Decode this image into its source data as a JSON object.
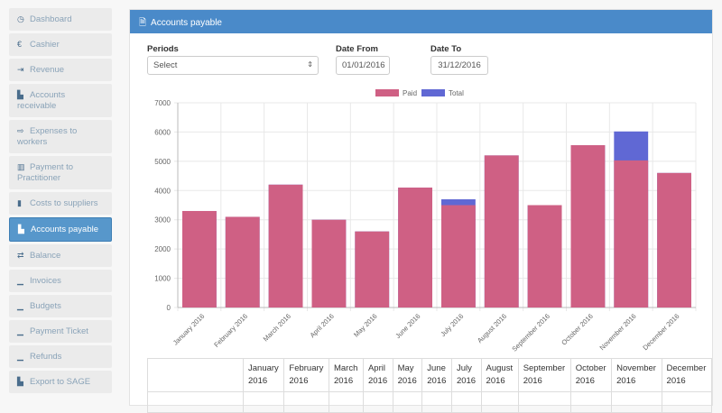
{
  "sidebar": {
    "items": [
      {
        "label": "Dashboard",
        "icon": "clock-icon",
        "glyph": "◷"
      },
      {
        "label": "Cashier",
        "icon": "euro-icon",
        "glyph": "€"
      },
      {
        "label": "Revenue",
        "icon": "sign-in-icon",
        "glyph": "⇥"
      },
      {
        "label": "Accounts receivable",
        "icon": "cash-register-icon",
        "glyph": "▙"
      },
      {
        "label": "Expenses to workers",
        "icon": "sign-out-icon",
        "glyph": "⇨"
      },
      {
        "label": "Payment to Practitioner",
        "icon": "columns-icon",
        "glyph": "▥"
      },
      {
        "label": "Costs to suppliers",
        "icon": "barcode-icon",
        "glyph": "▮"
      },
      {
        "label": "Accounts payable",
        "icon": "cash-register-icon",
        "glyph": "▙",
        "active": true
      },
      {
        "label": "Balance",
        "icon": "exchange-icon",
        "glyph": "⇄"
      },
      {
        "label": "Invoices",
        "icon": "chart-icon",
        "glyph": "▁"
      },
      {
        "label": "Budgets",
        "icon": "chart-icon",
        "glyph": "▁"
      },
      {
        "label": "Payment Ticket",
        "icon": "chart-icon",
        "glyph": "▁"
      },
      {
        "label": "Refunds",
        "icon": "chart-icon",
        "glyph": "▁"
      },
      {
        "label": "Export to SAGE",
        "icon": "export-icon",
        "glyph": "▙"
      }
    ]
  },
  "panel": {
    "title": "Accounts payable",
    "icon": "file-icon"
  },
  "filters": {
    "periods_label": "Periods",
    "periods_value": "Select",
    "date_from_label": "Date From",
    "date_from": "01/01/2016",
    "date_to_label": "Date To",
    "date_to": "31/12/2016"
  },
  "chart_data": {
    "type": "bar",
    "categories": [
      "January 2016",
      "February 2016",
      "March 2016",
      "April 2016",
      "May 2016",
      "June 2016",
      "July 2016",
      "August 2016",
      "September 2016",
      "October 2016",
      "November 2016",
      "December 2016"
    ],
    "series": [
      {
        "name": "Paid",
        "color": "#cf6084",
        "values": [
          3300,
          3100,
          4200,
          3000,
          2600,
          4100,
          3500,
          5200,
          3500,
          5550,
          5030,
          4600
        ]
      },
      {
        "name": "Total",
        "color": "#6068d4",
        "values": [
          3300,
          3100,
          4200,
          3000,
          2600,
          4100,
          3700,
          5200,
          3500,
          5550,
          6020,
          4600
        ]
      }
    ],
    "ylim": [
      0,
      7000
    ],
    "yticks": [
      0,
      1000,
      2000,
      3000,
      4000,
      5000,
      6000,
      7000
    ],
    "grid": true,
    "legend": "top"
  },
  "table": {
    "headers": [
      "",
      "January 2016",
      "February 2016",
      "March 2016",
      "April 2016",
      "May 2016",
      "June 2016",
      "July 2016",
      "August 2016",
      "September 2016",
      "October 2016",
      "November 2016",
      "December 2016"
    ]
  }
}
